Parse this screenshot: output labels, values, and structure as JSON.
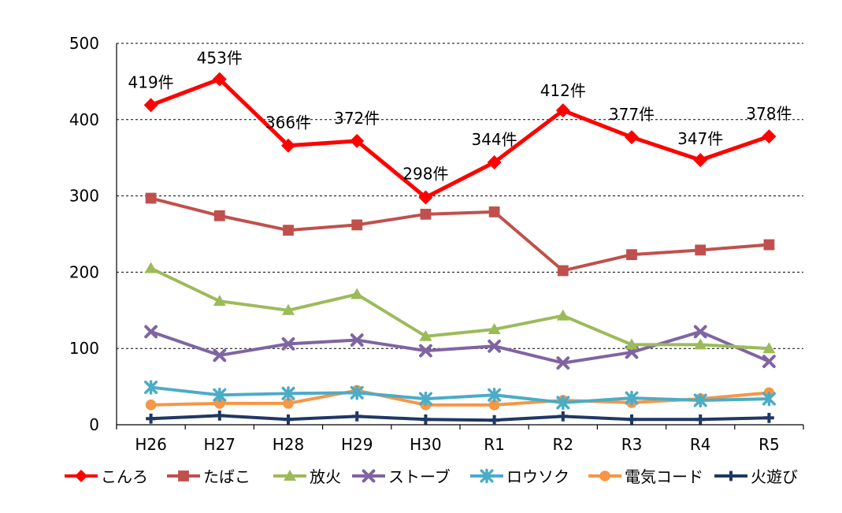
{
  "chart_data": {
    "type": "line",
    "title": "",
    "xlabel": "",
    "ylabel": "",
    "ylim": [
      0,
      500
    ],
    "yticks": [
      0,
      100,
      200,
      300,
      400,
      500
    ],
    "grid": true,
    "legend_position": "bottom",
    "categories": [
      "H26",
      "H27",
      "H28",
      "H29",
      "H30",
      "R1",
      "R2",
      "R3",
      "R4",
      "R5"
    ],
    "series": [
      {
        "name": "こんろ",
        "color": "#ff0000",
        "marker": "diamond",
        "values": [
          419,
          453,
          366,
          372,
          298,
          344,
          412,
          377,
          347,
          378
        ],
        "labels": [
          "419件",
          "453件",
          "366件",
          "372件",
          "298件",
          "344件",
          "412件",
          "377件",
          "347件",
          "378件"
        ]
      },
      {
        "name": "たばこ",
        "color": "#c0504d",
        "marker": "square",
        "values": [
          297,
          274,
          255,
          262,
          276,
          279,
          202,
          223,
          229,
          236
        ]
      },
      {
        "name": "放火",
        "color": "#9bbb59",
        "marker": "triangle",
        "values": [
          205,
          162,
          150,
          171,
          116,
          125,
          143,
          105,
          105,
          100
        ]
      },
      {
        "name": "ストーブ",
        "color": "#8064a2",
        "marker": "x",
        "values": [
          122,
          91,
          106,
          111,
          97,
          103,
          81,
          95,
          122,
          83
        ]
      },
      {
        "name": "ロウソク",
        "color": "#4bacc6",
        "marker": "star",
        "values": [
          49,
          39,
          41,
          42,
          34,
          39,
          29,
          35,
          32,
          34
        ]
      },
      {
        "name": "電気コード",
        "color": "#f79646",
        "marker": "circle",
        "values": [
          26,
          28,
          28,
          45,
          26,
          26,
          32,
          29,
          34,
          42
        ]
      },
      {
        "name": "火遊び",
        "color": "#1f3864",
        "marker": "plus",
        "values": [
          8,
          12,
          7,
          11,
          7,
          6,
          11,
          7,
          7,
          9
        ]
      }
    ]
  }
}
